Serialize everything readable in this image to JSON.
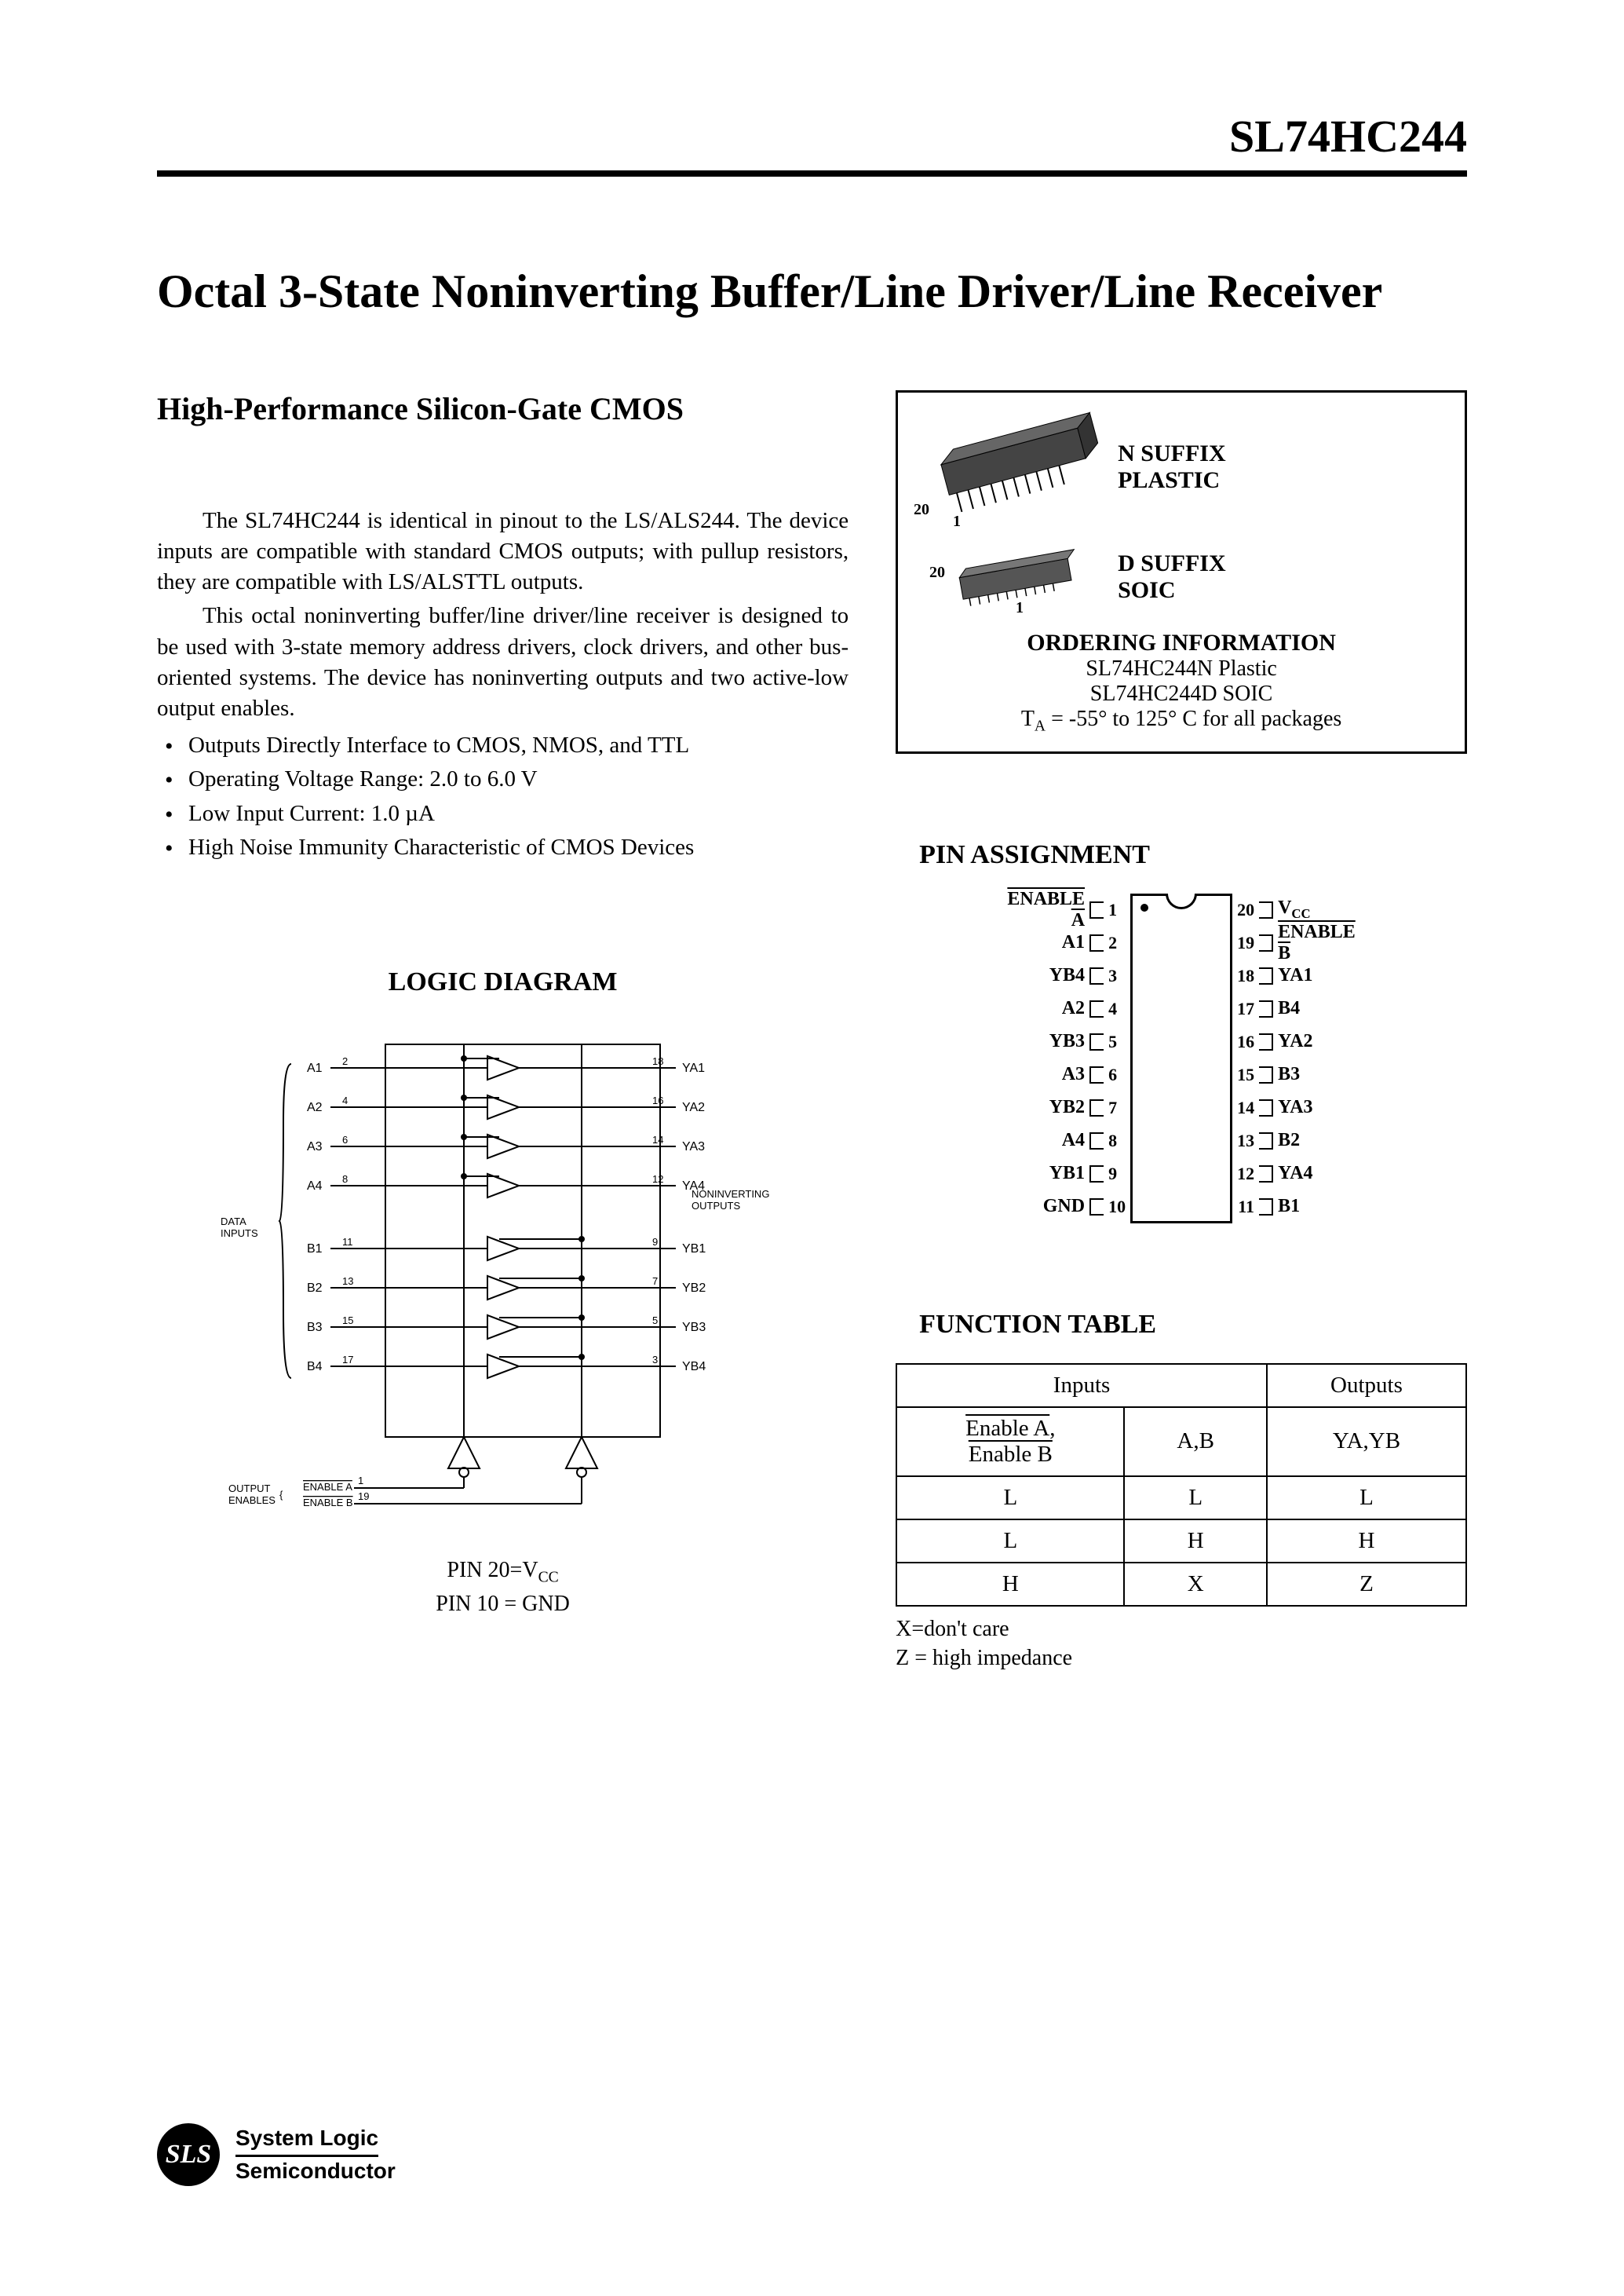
{
  "header": {
    "part_number": "SL74HC244"
  },
  "title": "Octal 3-State Noninverting Buffer/Line Driver/Line Receiver",
  "subtitle": "High-Performance Silicon-Gate CMOS",
  "paragraphs": [
    "The SL74HC244 is identical in pinout to the LS/ALS244. The device inputs are compatible with standard CMOS outputs; with pullup resistors, they are compatible with LS/ALSTTL outputs.",
    "This octal noninverting buffer/line driver/line receiver is designed to be used with 3-state memory address drivers, clock drivers, and other bus-oriented systems. The device has noninverting outputs and two active-low output enables."
  ],
  "features": [
    "Outputs Directly Interface to CMOS, NMOS, and TTL",
    "Operating Voltage Range: 2.0 to 6.0 V",
    "Low Input Current: 1.0 µA",
    "High Noise Immunity Characteristic of CMOS Devices"
  ],
  "ordering": {
    "pkg1_suffix": "N SUFFIX",
    "pkg1_type": "PLASTIC",
    "pkg2_suffix": "D   SUFFIX",
    "pkg2_type": "SOIC",
    "heading": "ORDERING INFORMATION",
    "line1": "SL74HC244N Plastic",
    "line2": "SL74HC244D SOIC",
    "line3": "T_A = -55° to 125° C for all packages",
    "pin1": "1",
    "pin20": "20"
  },
  "logic": {
    "heading": "LOGIC DIAGRAM",
    "inputs_label": "DATA INPUTS",
    "outputs_label": "NONINVERTING OUTPUTS",
    "enables_label": "OUTPUT ENABLES",
    "enable_a": "ENABLE A",
    "enable_b": "ENABLE B",
    "signals_a": [
      {
        "in": "A1",
        "in_pin": "2",
        "out": "YA1",
        "out_pin": "18"
      },
      {
        "in": "A2",
        "in_pin": "4",
        "out": "YA2",
        "out_pin": "16"
      },
      {
        "in": "A3",
        "in_pin": "6",
        "out": "YA3",
        "out_pin": "14"
      },
      {
        "in": "A4",
        "in_pin": "8",
        "out": "YA4",
        "out_pin": "12"
      }
    ],
    "signals_b": [
      {
        "in": "B1",
        "in_pin": "11",
        "out": "YB1",
        "out_pin": "9"
      },
      {
        "in": "B2",
        "in_pin": "13",
        "out": "YB2",
        "out_pin": "7"
      },
      {
        "in": "B3",
        "in_pin": "15",
        "out": "YB3",
        "out_pin": "5"
      },
      {
        "in": "B4",
        "in_pin": "17",
        "out": "YB4",
        "out_pin": "3"
      }
    ],
    "ena_pin": "1",
    "enb_pin": "19",
    "caption1": "PIN 20=V_CC",
    "caption2": "PIN 10 = GND"
  },
  "pin_assignment": {
    "heading": "PIN ASSIGNMENT",
    "left": [
      {
        "num": "1",
        "label": "ENABLE A",
        "overline": true
      },
      {
        "num": "2",
        "label": "A1"
      },
      {
        "num": "3",
        "label": "YB4"
      },
      {
        "num": "4",
        "label": "A2"
      },
      {
        "num": "5",
        "label": "YB3"
      },
      {
        "num": "6",
        "label": "A3"
      },
      {
        "num": "7",
        "label": "YB2"
      },
      {
        "num": "8",
        "label": "A4"
      },
      {
        "num": "9",
        "label": "YB1"
      },
      {
        "num": "10",
        "label": "GND"
      }
    ],
    "right": [
      {
        "num": "20",
        "label": "V_CC"
      },
      {
        "num": "19",
        "label": "ENABLE B",
        "overline": true
      },
      {
        "num": "18",
        "label": "YA1"
      },
      {
        "num": "17",
        "label": "B4"
      },
      {
        "num": "16",
        "label": "YA2"
      },
      {
        "num": "15",
        "label": "B3"
      },
      {
        "num": "14",
        "label": "YA3"
      },
      {
        "num": "13",
        "label": "B2"
      },
      {
        "num": "12",
        "label": "YA4"
      },
      {
        "num": "11",
        "label": "B1"
      }
    ]
  },
  "function_table": {
    "heading": "FUNCTION TABLE",
    "inputs_header": "Inputs",
    "outputs_header": "Outputs",
    "col1": "Enable A, Enable B",
    "col2": "A,B",
    "col3": "YA,YB",
    "rows": [
      [
        "L",
        "L",
        "L"
      ],
      [
        "L",
        "H",
        "H"
      ],
      [
        "H",
        "X",
        "Z"
      ]
    ],
    "note1": "X=don't care",
    "note2": "Z = high impedance"
  },
  "footer": {
    "logo": "SLS",
    "line1": "System Logic",
    "line2": "Semiconductor"
  }
}
